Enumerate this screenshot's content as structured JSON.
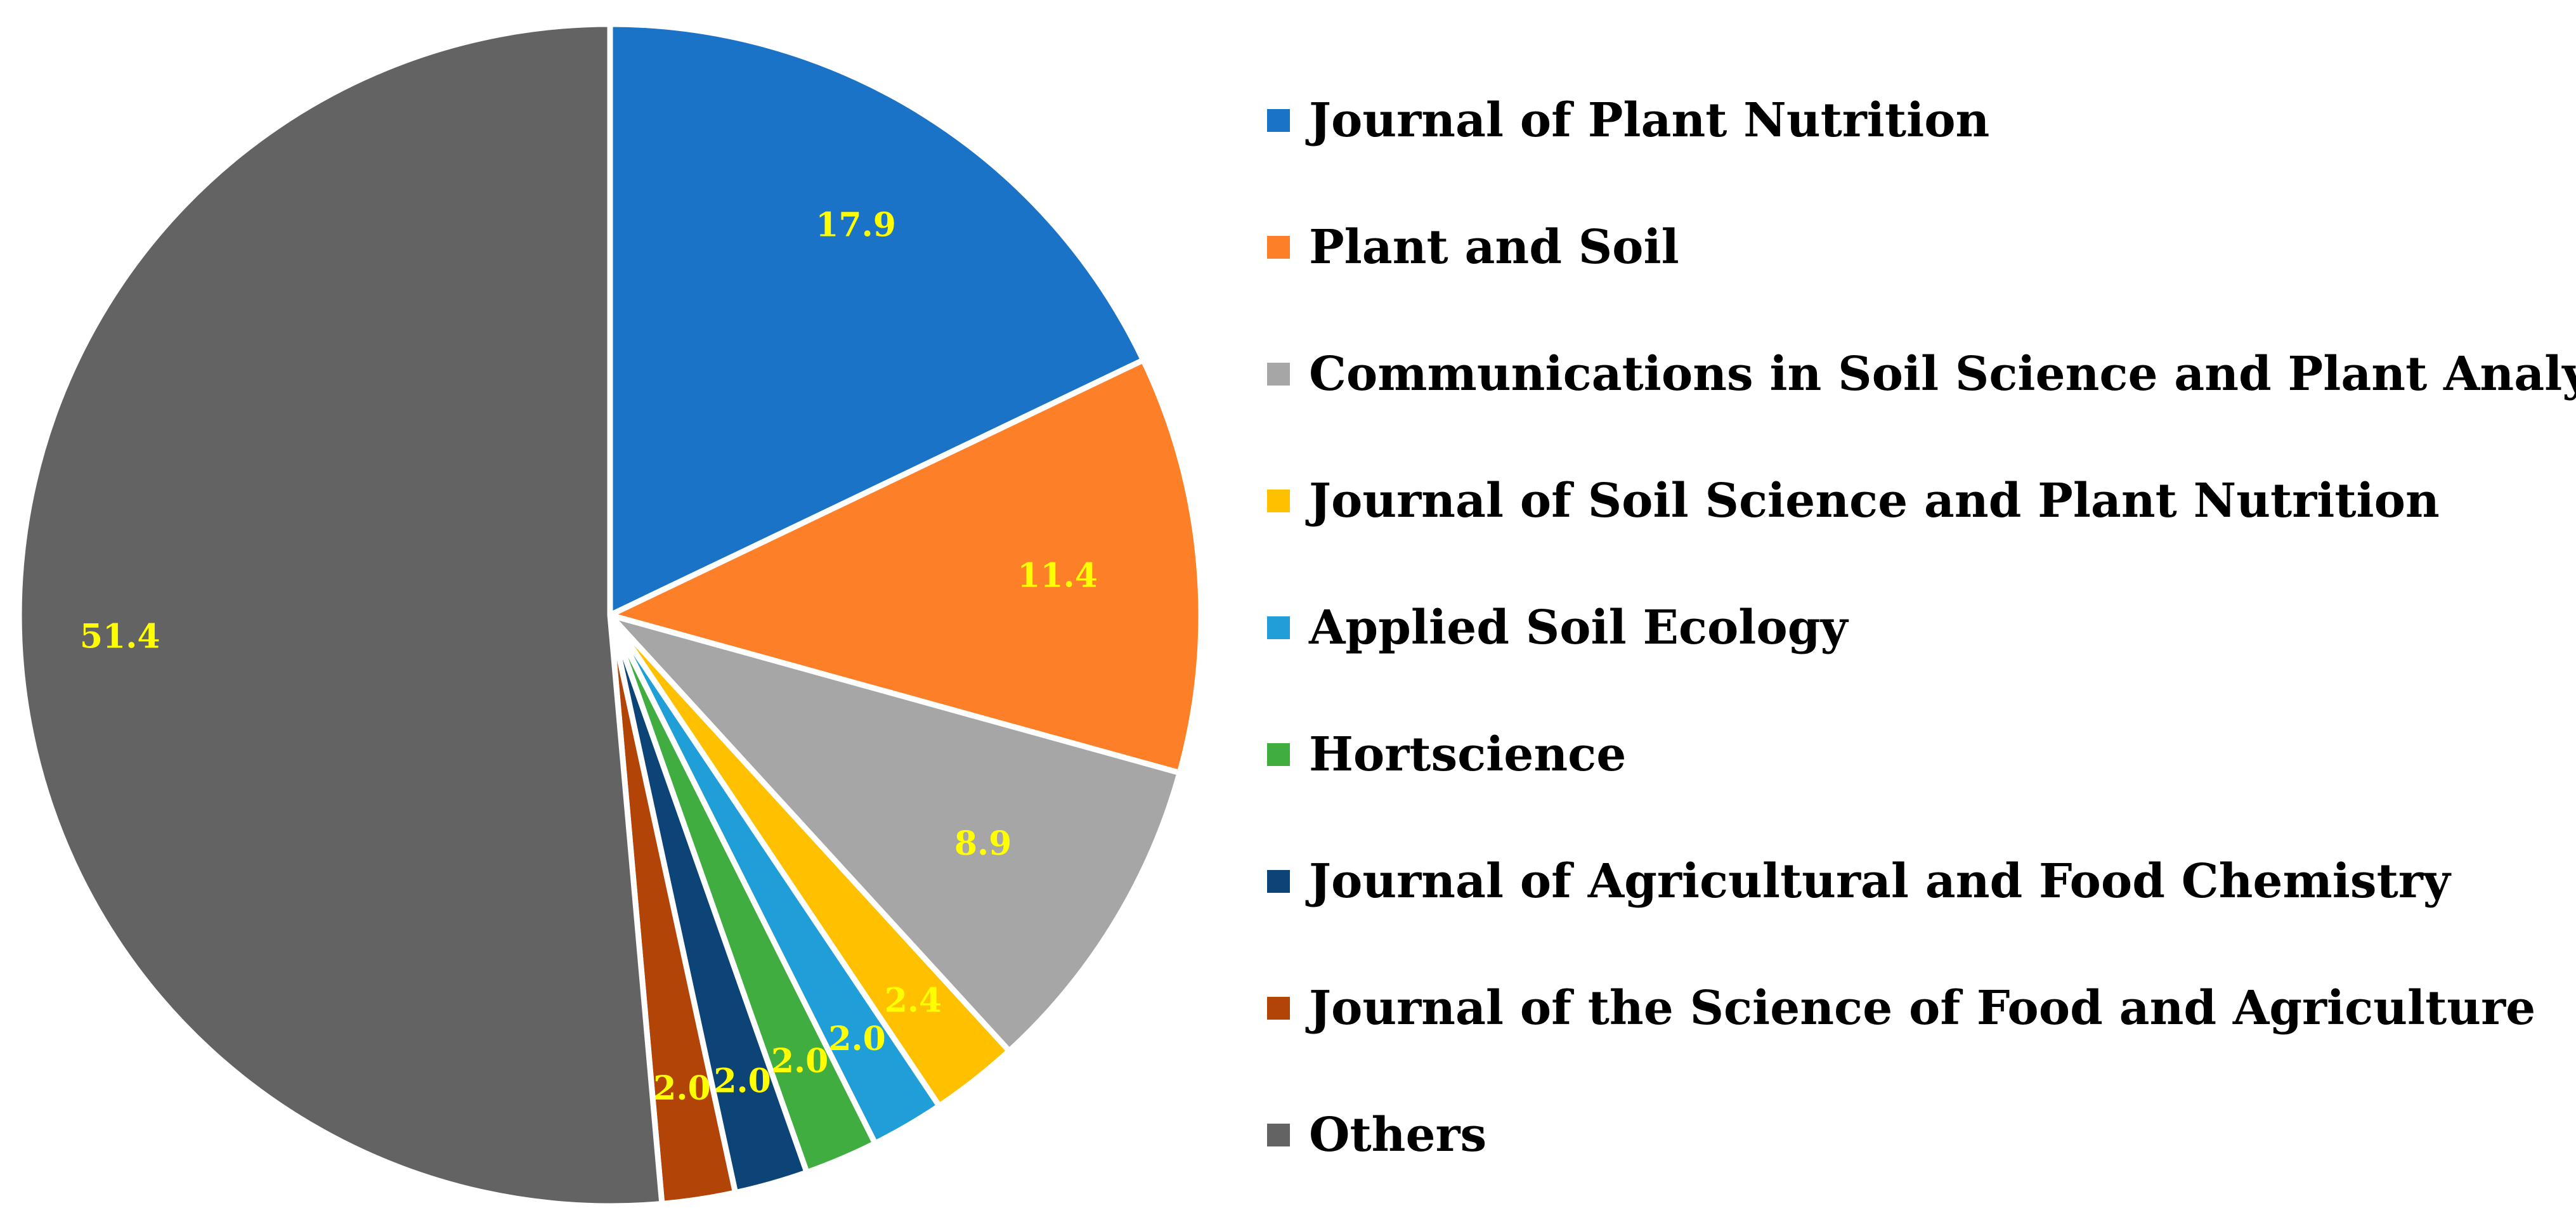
{
  "chart_data": {
    "type": "pie",
    "title": "",
    "categories": [
      "Journal of Plant Nutrition",
      "Plant and Soil",
      "Communications in Soil Science and Plant Analysis",
      "Journal of Soil Science and Plant Nutrition",
      "Applied Soil Ecology",
      "Hortscience",
      "Journal of Agricultural and Food Chemistry",
      "Journal of the Science of Food and Agriculture",
      "Others"
    ],
    "values": [
      17.9,
      11.4,
      8.9,
      2.4,
      2.0,
      2.0,
      2.0,
      2.0,
      51.4
    ],
    "labels": [
      "17.9",
      "11.4",
      "8.9",
      "2.4",
      "2.0",
      "2.0",
      "2.0",
      "2.0",
      "51.4"
    ],
    "colors": [
      "#1a73c7",
      "#fd7f27",
      "#a6a6a6",
      "#ffc000",
      "#209ed8",
      "#40ad40",
      "#0c4478",
      "#b24408",
      "#636363"
    ],
    "label_color": "#ffff00",
    "start": "12 o'clock, clockwise",
    "legend_position": "right"
  }
}
